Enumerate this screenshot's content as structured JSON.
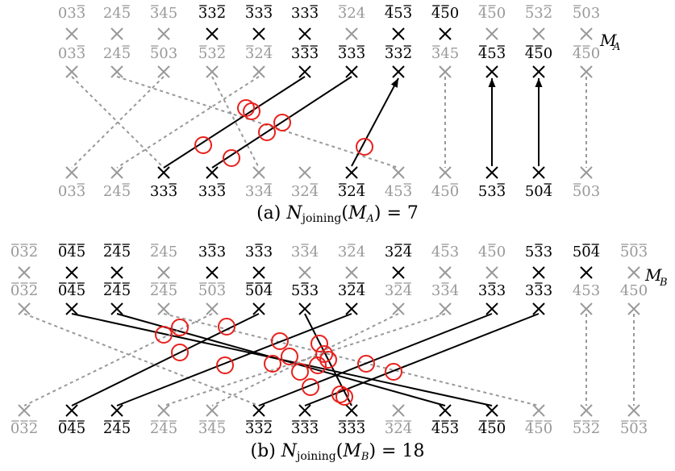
{
  "panel_a": {
    "matrix_label": "M",
    "matrix_sub": "A",
    "caption": {
      "prefix": "(a) ",
      "N": "N",
      "sub": "joining",
      "arg": "M",
      "arg_sub": "A",
      "equals": " = 7"
    },
    "top_row1": [
      {
        "t": "033",
        "bars": [
          2
        ],
        "c": "gray"
      },
      {
        "t": "245",
        "bars": [
          2
        ],
        "c": "gray"
      },
      {
        "t": "345",
        "bars": [
          0
        ],
        "c": "gray"
      },
      {
        "t": "332",
        "bars": [
          0,
          2
        ],
        "c": "black"
      },
      {
        "t": "333",
        "bars": [
          0,
          2
        ],
        "c": "black"
      },
      {
        "t": "333",
        "bars": [
          2
        ],
        "c": "black"
      },
      {
        "t": "324",
        "bars": [
          0
        ],
        "c": "gray"
      },
      {
        "t": "453",
        "bars": [
          0,
          2
        ],
        "c": "black"
      },
      {
        "t": "450",
        "bars": [
          0,
          1
        ],
        "c": "black"
      },
      {
        "t": "450",
        "bars": [
          0,
          1
        ],
        "c": "gray"
      },
      {
        "t": "532",
        "bars": [
          0,
          2
        ],
        "c": "gray"
      },
      {
        "t": "503",
        "bars": [
          0
        ],
        "c": "gray"
      }
    ],
    "top_row2": [
      {
        "t": "033",
        "bars": [
          2
        ],
        "c": "gray"
      },
      {
        "t": "245",
        "bars": [
          2
        ],
        "c": "gray"
      },
      {
        "t": "503",
        "bars": [
          0
        ],
        "c": "gray"
      },
      {
        "t": "532",
        "bars": [
          0,
          2
        ],
        "c": "gray"
      },
      {
        "t": "324",
        "bars": [
          0,
          2
        ],
        "c": "gray"
      },
      {
        "t": "333",
        "bars": [
          1,
          2
        ],
        "c": "black"
      },
      {
        "t": "333",
        "bars": [
          0,
          2
        ],
        "c": "black"
      },
      {
        "t": "332",
        "bars": [
          0,
          2
        ],
        "c": "black"
      },
      {
        "t": "345",
        "bars": [
          0
        ],
        "c": "gray"
      },
      {
        "t": "453",
        "bars": [
          0,
          2
        ],
        "c": "black"
      },
      {
        "t": "450",
        "bars": [
          0,
          1
        ],
        "c": "black"
      },
      {
        "t": "450",
        "bars": [
          0,
          1
        ],
        "c": "gray"
      }
    ],
    "bottom_row": [
      {
        "t": "033",
        "bars": [
          2
        ],
        "c": "gray"
      },
      {
        "t": "245",
        "bars": [
          2
        ],
        "c": "gray"
      },
      {
        "t": "333",
        "bars": [
          2
        ],
        "c": "black"
      },
      {
        "t": "333",
        "bars": [
          2
        ],
        "c": "black"
      },
      {
        "t": "334",
        "bars": [
          2
        ],
        "c": "gray"
      },
      {
        "t": "324",
        "bars": [
          2
        ],
        "c": "gray"
      },
      {
        "t": "324",
        "bars": [
          0,
          2
        ],
        "c": "black"
      },
      {
        "t": "453",
        "bars": [
          2
        ],
        "c": "gray"
      },
      {
        "t": "450",
        "bars": [
          2
        ],
        "c": "gray"
      },
      {
        "t": "533",
        "bars": [
          2
        ],
        "c": "black"
      },
      {
        "t": "504",
        "bars": [
          2
        ],
        "c": "black"
      },
      {
        "t": "503",
        "bars": [
          0
        ],
        "c": "gray"
      }
    ]
  },
  "panel_b": {
    "matrix_label": "M",
    "matrix_sub": "B",
    "caption": {
      "prefix": "(b) ",
      "N": "N",
      "sub": "joining",
      "arg": "M",
      "arg_sub": "B",
      "equals": " = 18"
    },
    "top_row1": [
      {
        "t": "032",
        "bars": [
          0,
          1,
          2
        ],
        "c": "gray"
      },
      {
        "t": "045",
        "bars": [
          0,
          1,
          2
        ],
        "c": "black"
      },
      {
        "t": "245",
        "bars": [
          0,
          1,
          2
        ],
        "c": "black"
      },
      {
        "t": "245",
        "bars": [
          0
        ],
        "c": "gray"
      },
      {
        "t": "333",
        "bars": [
          1
        ],
        "c": "black"
      },
      {
        "t": "333",
        "bars": [
          1
        ],
        "c": "black"
      },
      {
        "t": "334",
        "bars": [
          1
        ],
        "c": "gray"
      },
      {
        "t": "324",
        "bars": [
          1
        ],
        "c": "gray"
      },
      {
        "t": "324",
        "bars": [
          1,
          2
        ],
        "c": "black"
      },
      {
        "t": "453",
        "bars": [
          1
        ],
        "c": "gray"
      },
      {
        "t": "450",
        "bars": [
          1
        ],
        "c": "gray"
      },
      {
        "t": "533",
        "bars": [
          1
        ],
        "c": "black"
      },
      {
        "t": "504",
        "bars": [
          1,
          2
        ],
        "c": "black"
      },
      {
        "t": "503",
        "bars": [
          0,
          1,
          2
        ],
        "c": "gray"
      }
    ],
    "top_row2": [
      {
        "t": "032",
        "bars": [
          0,
          1,
          2
        ],
        "c": "gray"
      },
      {
        "t": "045",
        "bars": [
          0,
          1,
          2
        ],
        "c": "black"
      },
      {
        "t": "245",
        "bars": [
          0,
          1,
          2
        ],
        "c": "black"
      },
      {
        "t": "245",
        "bars": [
          0,
          1,
          2
        ],
        "c": "gray"
      },
      {
        "t": "503",
        "bars": [
          0,
          1,
          2
        ],
        "c": "gray"
      },
      {
        "t": "504",
        "bars": [
          0,
          1,
          2
        ],
        "c": "black"
      },
      {
        "t": "533",
        "bars": [
          1
        ],
        "c": "black"
      },
      {
        "t": "324",
        "bars": [
          1,
          2
        ],
        "c": "black"
      },
      {
        "t": "324",
        "bars": [
          1,
          2
        ],
        "c": "gray"
      },
      {
        "t": "334",
        "bars": [
          1
        ],
        "c": "gray"
      },
      {
        "t": "333",
        "bars": [
          1
        ],
        "c": "black"
      },
      {
        "t": "333",
        "bars": [
          1
        ],
        "c": "black"
      },
      {
        "t": "453",
        "bars": [],
        "c": "gray"
      },
      {
        "t": "450",
        "bars": [],
        "c": "gray"
      }
    ],
    "bottom_row": [
      {
        "t": "032",
        "bars": [
          0,
          1,
          2
        ],
        "c": "gray"
      },
      {
        "t": "045",
        "bars": [
          0,
          1,
          2
        ],
        "c": "black"
      },
      {
        "t": "245",
        "bars": [
          0,
          1,
          2
        ],
        "c": "black"
      },
      {
        "t": "245",
        "bars": [
          0,
          1,
          2
        ],
        "c": "gray"
      },
      {
        "t": "345",
        "bars": [
          0,
          1,
          2
        ],
        "c": "gray"
      },
      {
        "t": "332",
        "bars": [
          0,
          1,
          2
        ],
        "c": "black"
      },
      {
        "t": "333",
        "bars": [
          0,
          1,
          2
        ],
        "c": "black"
      },
      {
        "t": "333",
        "bars": [
          0,
          1,
          2
        ],
        "c": "black"
      },
      {
        "t": "324",
        "bars": [
          0,
          1,
          2
        ],
        "c": "gray"
      },
      {
        "t": "453",
        "bars": [
          0,
          1,
          2
        ],
        "c": "black"
      },
      {
        "t": "450",
        "bars": [
          0,
          1,
          2
        ],
        "c": "black"
      },
      {
        "t": "450",
        "bars": [
          0,
          1,
          2
        ],
        "c": "gray"
      },
      {
        "t": "532",
        "bars": [
          0,
          1,
          2
        ],
        "c": "gray"
      },
      {
        "t": "503",
        "bars": [
          0,
          1,
          2
        ],
        "c": "gray"
      }
    ]
  },
  "colors": {
    "black": "#000000",
    "gray": "#999999",
    "circle": "#e8201c"
  }
}
